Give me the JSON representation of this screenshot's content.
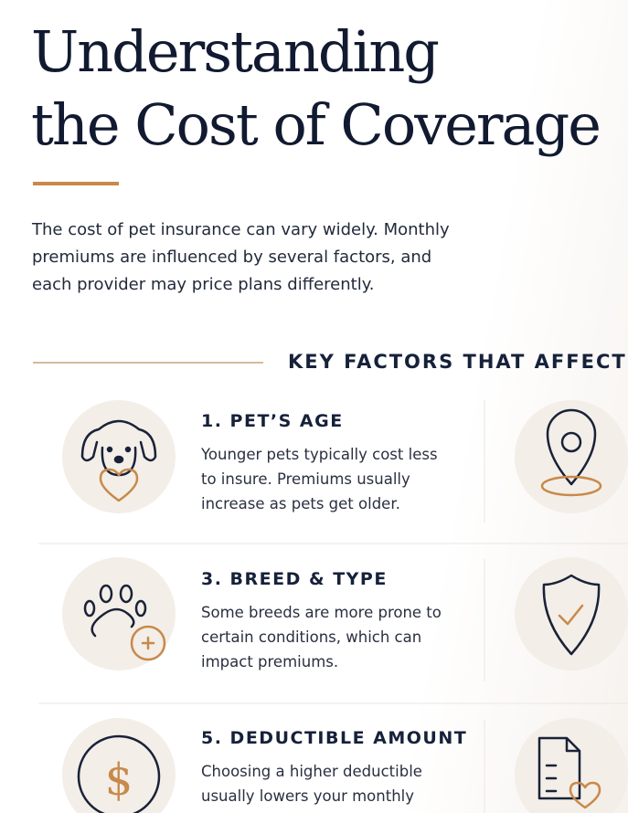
{
  "header": {
    "title_lines": [
      "Understanding",
      "the Cost of Coverage"
    ],
    "intro_lines": [
      "The cost of pet insurance can vary widely. Monthly",
      "premiums are influenced by several factors, and",
      "each provider may price plans differently."
    ]
  },
  "section": {
    "heading": "KEY FACTORS THAT AFFECT C"
  },
  "factors": [
    {
      "title": "1. PET’S AGE",
      "lines": [
        "Younger pets typically cost less",
        "to insure. Premiums usually",
        "increase as pets get older."
      ]
    },
    {
      "title": "3. BREED & TYPE",
      "lines": [
        "Some breeds are more prone to",
        "certain conditions, which can",
        "impact premiums."
      ]
    },
    {
      "title": "5. DEDUCTIBLE AMOUNT",
      "lines": [
        "Choosing a higher deductible",
        "usually lowers your monthly"
      ]
    }
  ]
}
